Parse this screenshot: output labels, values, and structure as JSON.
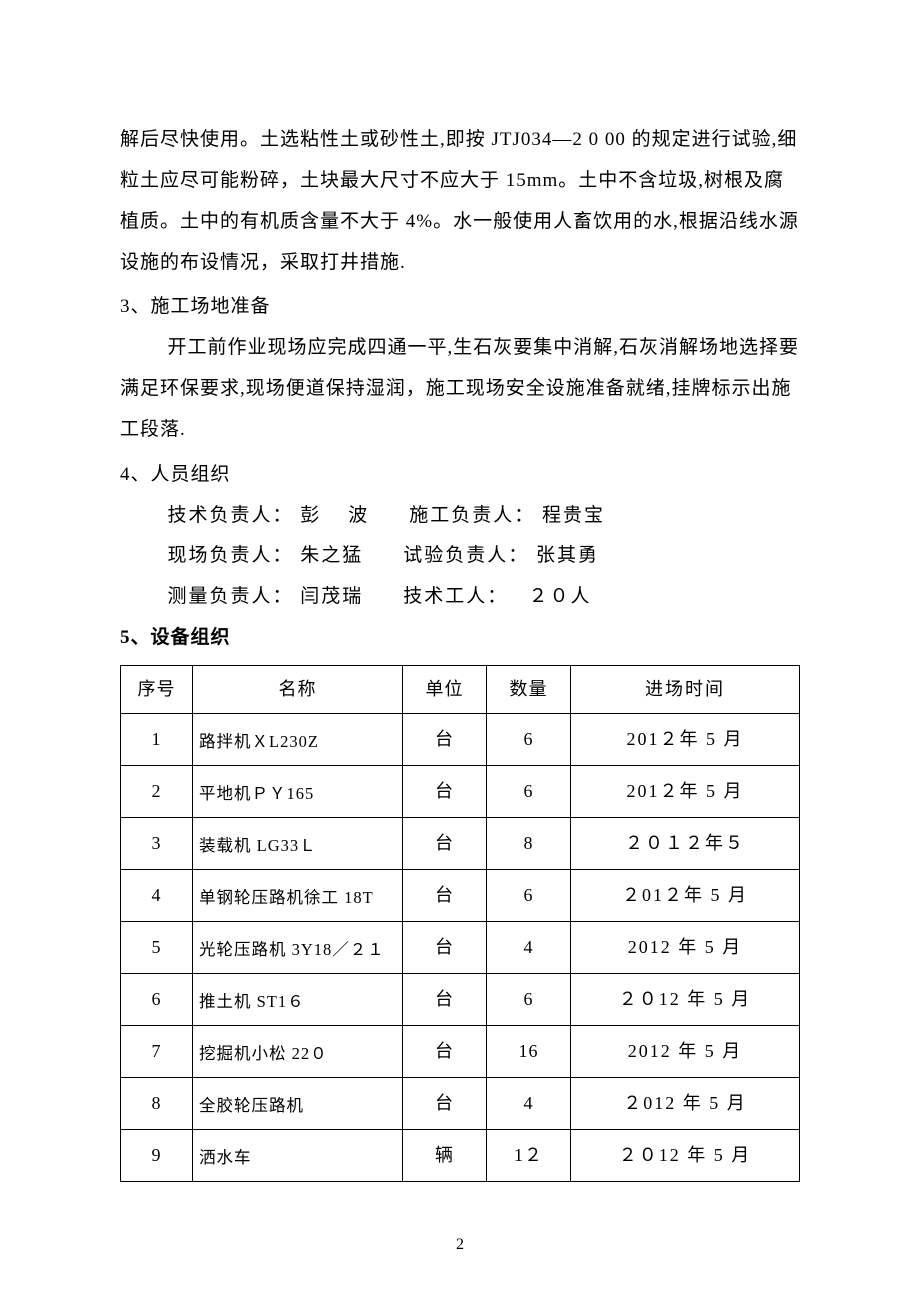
{
  "para1": "解后尽快使用。土选粘性土或砂性土,即按 JTJ034—2 0 00 的规定进行试验,细粒土应尽可能粉碎，土块最大尺寸不应大于 15mm。土中不含垃圾,树根及腐植质。土中的有机质含量不大于 4%。水一般使用人畜饮用的水,根据沿线水源设施的布设情况，采取打井措施.",
  "sec3_title": "3、施工场地准备",
  "sec3_body": "开工前作业现场应完成四通一平,生石灰要集中消解,石灰消解场地选择要满足环保要求,现场便道保持湿润，施工现场安全设施准备就绪,挂牌标示出施工段落.",
  "sec4_title": "4、人员组织",
  "personnel": {
    "r1": {
      "l1": "技术负责人：",
      "n1": " 彭    波",
      "l2": "施工负责人：",
      "n2": " 程贵宝"
    },
    "r2": {
      "l1": "现场负责人：",
      "n1": " 朱之猛",
      "l2": "试验负责人：",
      "n2": " 张其勇"
    },
    "r3": {
      "l1": "测量负责人：",
      "n1": " 闫茂瑞",
      "l2": "技术工人：",
      "n2": "   ２０人"
    }
  },
  "sec5_title": "5、设备组织",
  "table": {
    "headers": {
      "seq": "序号",
      "name": "名称",
      "unit": "单位",
      "qty": "数量",
      "time": "进场时间"
    },
    "rows": [
      {
        "seq": "1",
        "name": "路拌机ＸL230Z",
        "unit": "台",
        "qty": "6",
        "time": "201２年 5 月"
      },
      {
        "seq": "2",
        "name": "平地机ＰＹ165",
        "unit": "台",
        "qty": "6",
        "time": "201２年 5 月"
      },
      {
        "seq": "3",
        "name": "装载机 LG33Ｌ",
        "unit": "台",
        "qty": "8",
        "time": "２０１２年５"
      },
      {
        "seq": "4",
        "name": "单钢轮压路机徐工 18T",
        "unit": "台",
        "qty": "6",
        "time": "２01２年 5 月"
      },
      {
        "seq": "5",
        "name": "光轮压路机 3Y18／２１",
        "unit": "台",
        "qty": "4",
        "time": "2012 年 5 月"
      },
      {
        "seq": "6",
        "name": "推土机 ST1６",
        "unit": "台",
        "qty": "6",
        "time": "２０12 年 5 月"
      },
      {
        "seq": "7",
        "name": "挖掘机小松 22０",
        "unit": "台",
        "qty": "16",
        "time": "2012 年 5 月"
      },
      {
        "seq": "8",
        "name": "全胶轮压路机",
        "unit": "台",
        "qty": "4",
        "time": "２012 年 5 月"
      },
      {
        "seq": "9",
        "name": "洒水车",
        "unit": "辆",
        "qty": "1２",
        "time": "２０12 年 5 月"
      }
    ]
  },
  "page_number": "2"
}
